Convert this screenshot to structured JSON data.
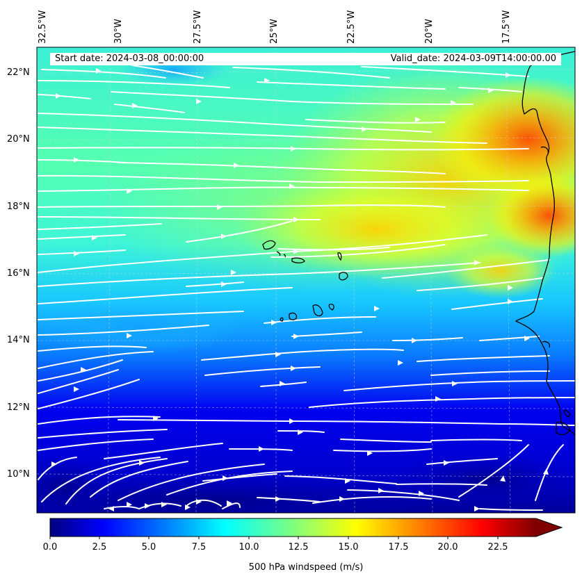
{
  "header": {
    "start_date": "Start date: 2024-03-08_00:00:00",
    "valid_date": "Valid_date: 2024-03-09T14:00:00.00"
  },
  "map": {
    "longitude_labels": [
      "32.5°W",
      "30°W",
      "27.5°W",
      "25°W",
      "22.5°W",
      "20°W",
      "17.5°W"
    ],
    "latitude_labels": [
      "22°N",
      "20°N",
      "18°N",
      "16°N",
      "14°N",
      "12°N",
      "10°N"
    ],
    "extent": {
      "lon_min": -33.0,
      "lon_max": -15.7,
      "lat_min": 9.0,
      "lat_max": 22.6
    },
    "field": "500 hPa windspeed",
    "streamline_color": "#ffffff",
    "coastline_color": "#000000"
  },
  "colorbar": {
    "ticks": [
      "0.0",
      "2.5",
      "5.0",
      "7.5",
      "10.0",
      "12.5",
      "15.0",
      "17.5",
      "20.0",
      "22.5"
    ],
    "label": "500 hPa windspeed (m/s)",
    "min": 0,
    "max": 25,
    "extend": "max",
    "colormap": "jet",
    "colors": [
      "#00007f",
      "#0000ff",
      "#007fff",
      "#00ffff",
      "#7fff7f",
      "#ffff00",
      "#ff7f00",
      "#ff0000",
      "#7f0000"
    ]
  }
}
